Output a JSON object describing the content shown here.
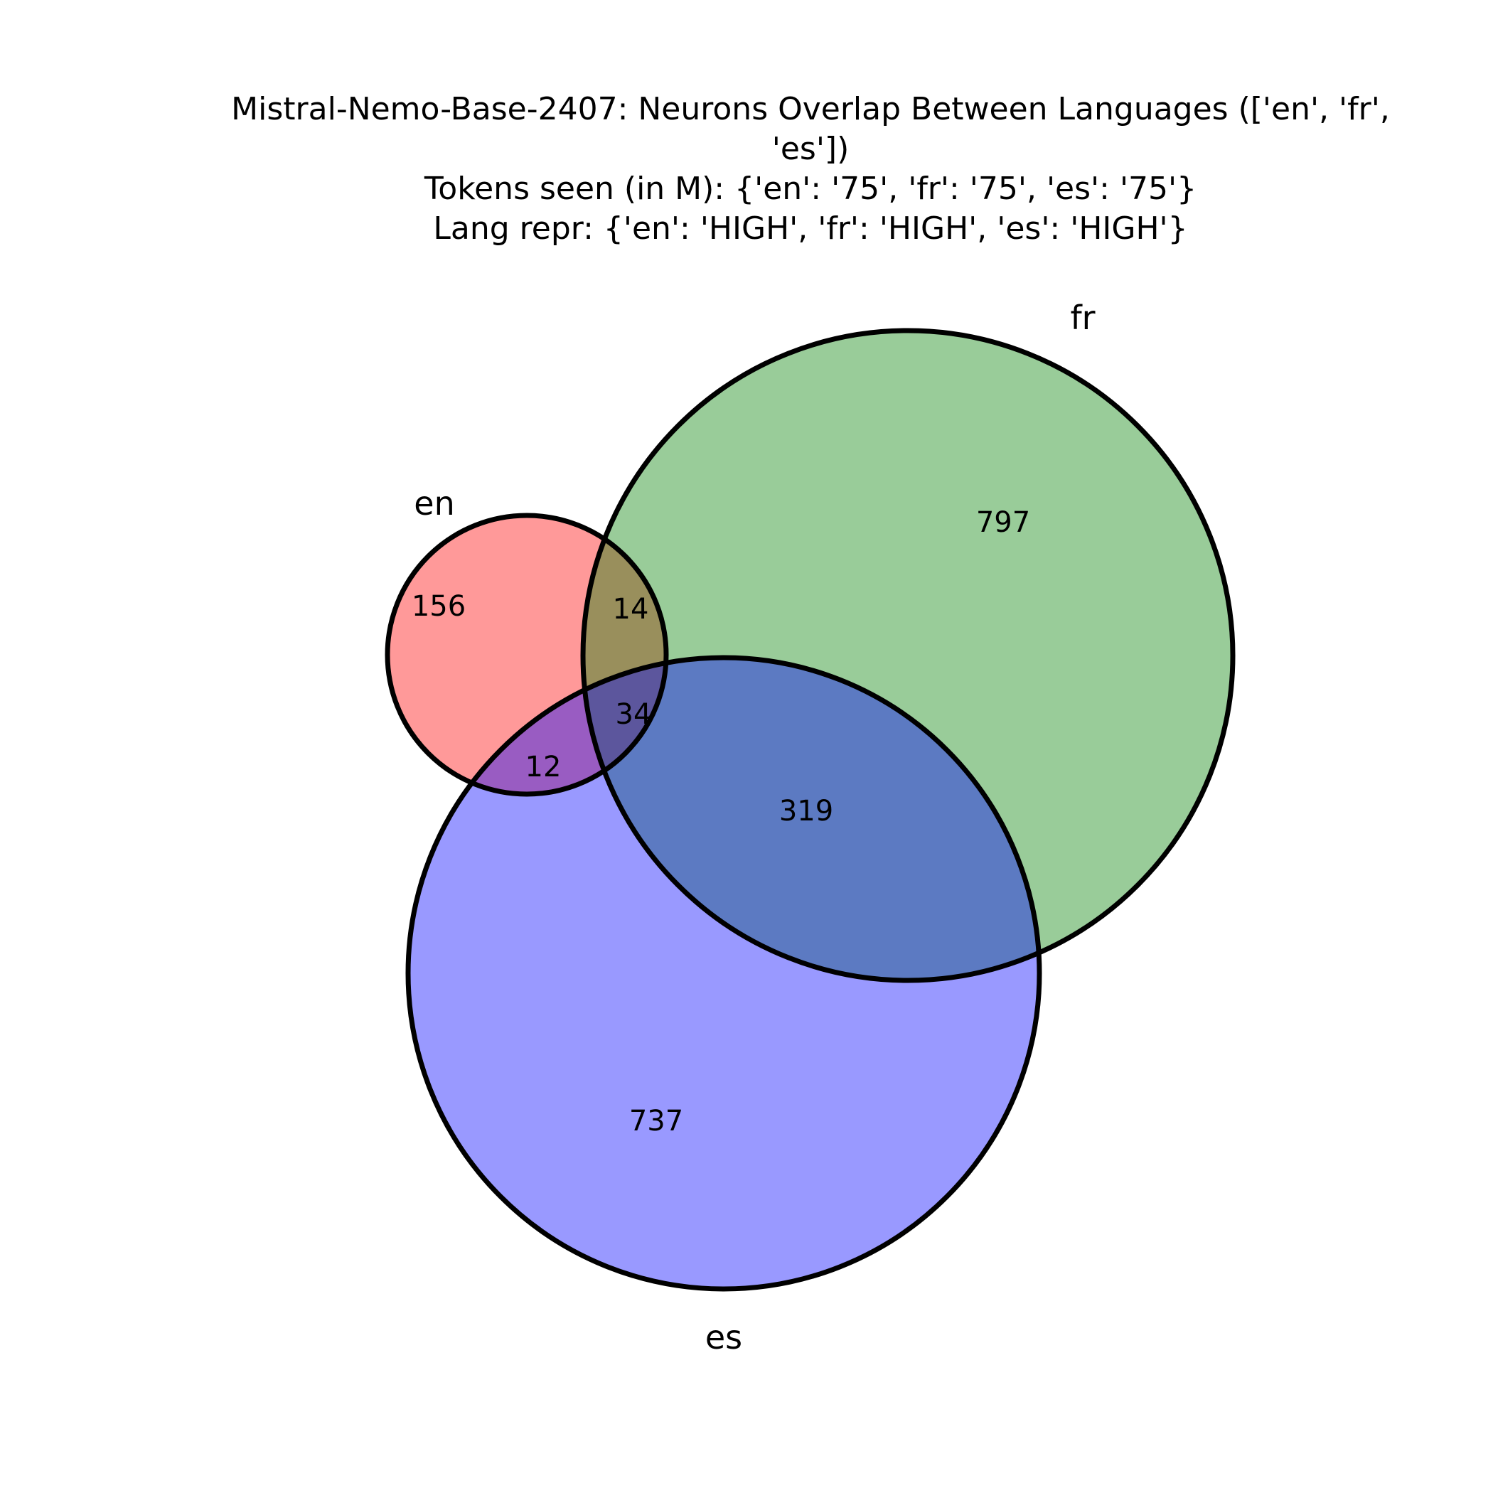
{
  "title": {
    "line1": "Mistral-Nemo-Base-2407: Neurons Overlap Between Languages (['en', 'fr',",
    "line2": "'es'])",
    "line3": "Tokens seen (in M): {'en': '75', 'fr': '75', 'es': '75'}",
    "line4": "Lang repr: {'en': 'HIGH', 'fr': 'HIGH', 'es': 'HIGH'}"
  },
  "sets": {
    "en": {
      "label": "en",
      "color": "#ff0000"
    },
    "fr": {
      "label": "fr",
      "color": "#008000"
    },
    "es": {
      "label": "es",
      "color": "#0000ff"
    }
  },
  "regions": {
    "en_only": "156",
    "fr_only": "797",
    "es_only": "737",
    "en_fr": "14",
    "en_es": "12",
    "fr_es": "319",
    "en_fr_es": "34"
  }
}
